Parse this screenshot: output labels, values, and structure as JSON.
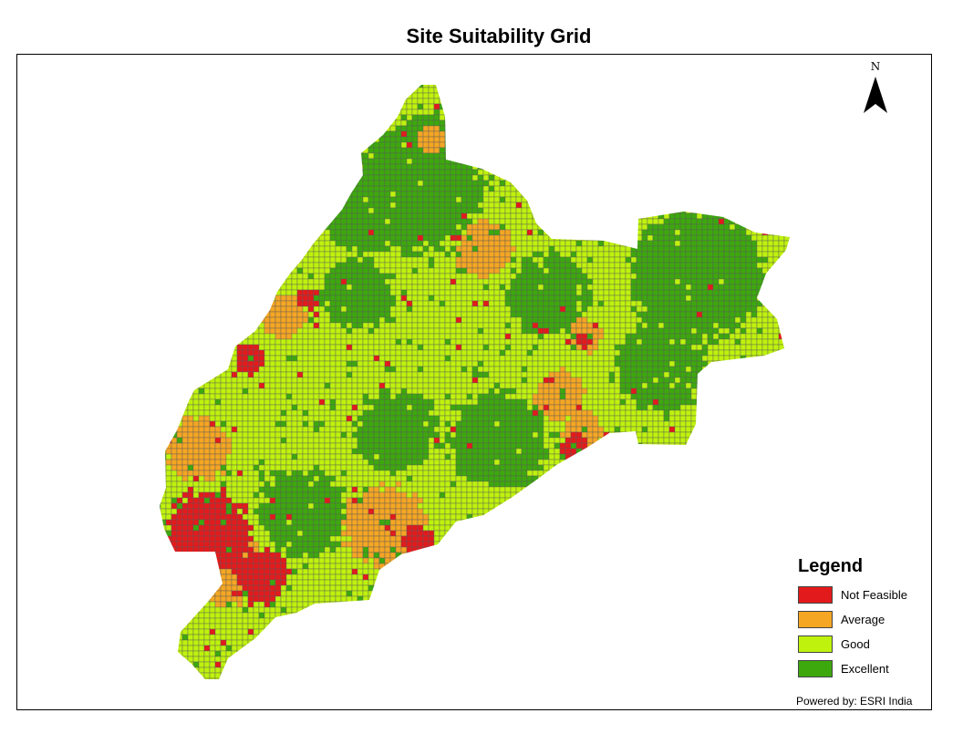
{
  "title": "Site Suitability Grid",
  "north_arrow": {
    "label": "N",
    "icon": "north-arrow-icon"
  },
  "legend": {
    "title": "Legend",
    "items": [
      {
        "label": "Not Feasible",
        "color": "#e31a1c"
      },
      {
        "label": "Average",
        "color": "#f5a623"
      },
      {
        "label": "Good",
        "color": "#bff20d"
      },
      {
        "label": "Excellent",
        "color": "#3da80e"
      }
    ]
  },
  "credit": "Powered by: ESRI India",
  "grid_colors": {
    "cell_border": "#5a5a5a"
  }
}
